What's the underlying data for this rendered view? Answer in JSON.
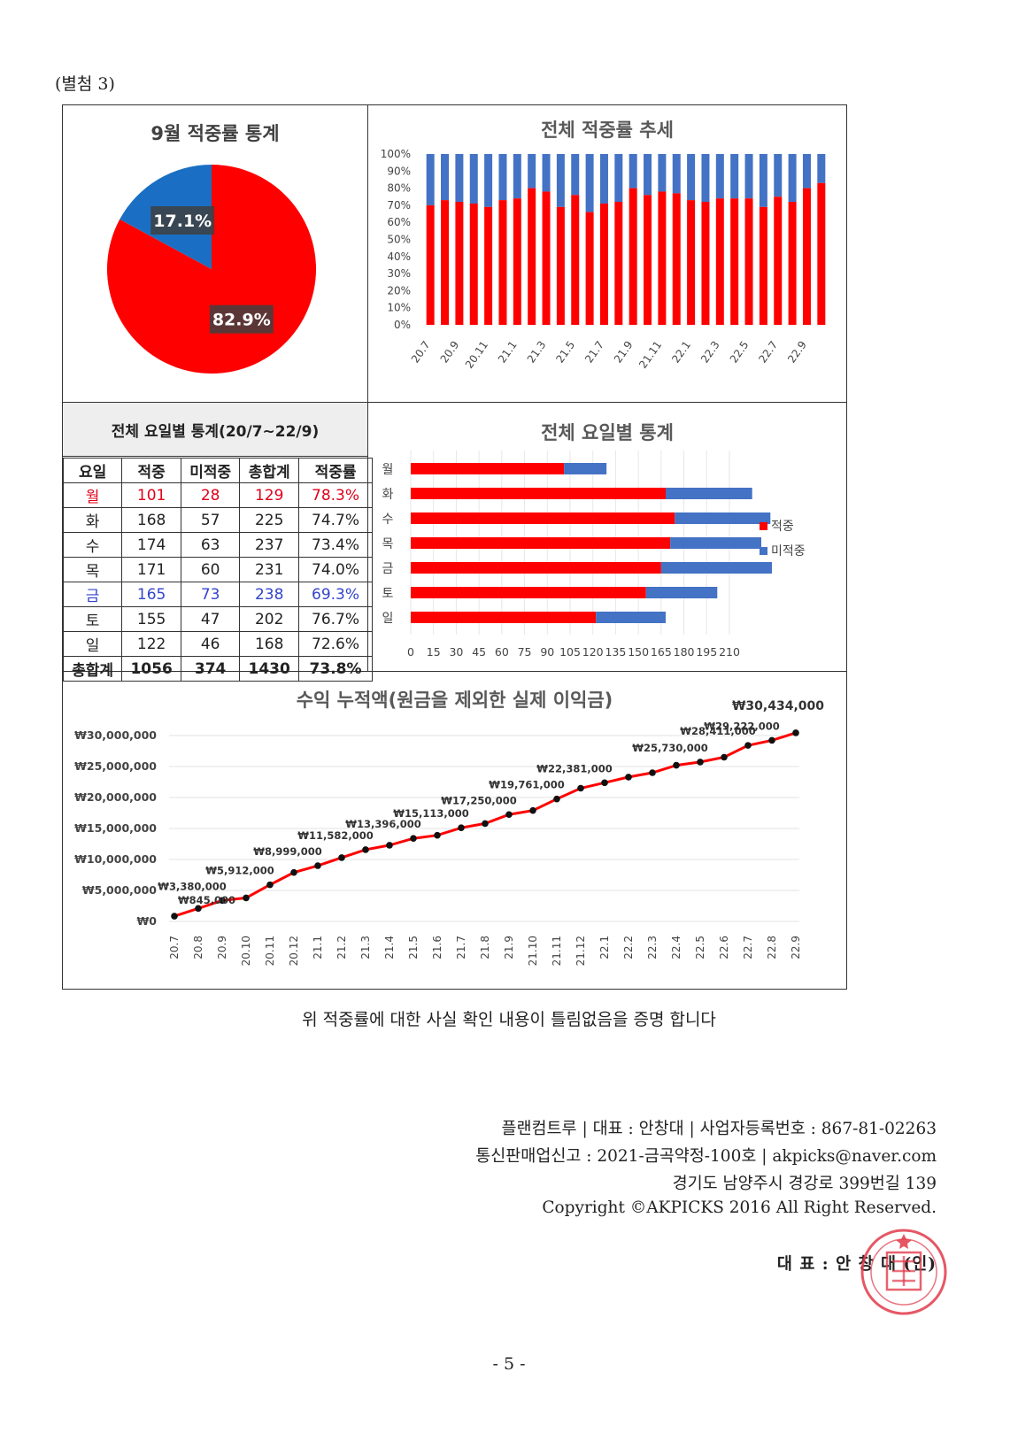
{
  "attachment_label": "(별첨 3)",
  "pie": {
    "title": "9월 적중률 통계",
    "slices": [
      {
        "label": "82.9%",
        "value": 82.9,
        "color": "#ff0000"
      },
      {
        "label": "17.1%",
        "value": 17.1,
        "color": "#1a6fc4"
      }
    ]
  },
  "trend": {
    "title": "전체 적중률 추세",
    "y_ticks": [
      "100%",
      "90%",
      "80%",
      "70%",
      "60%",
      "50%",
      "40%",
      "30%",
      "20%",
      "10%",
      "0%"
    ],
    "x_labels": [
      "20.7",
      "20.9",
      "20.11",
      "21.1",
      "21.3",
      "21.5",
      "21.7",
      "21.9",
      "21.11",
      "22.1",
      "22.3",
      "22.5",
      "22.7",
      "22.9"
    ],
    "values": [
      70,
      73,
      72,
      71,
      69,
      73,
      74,
      80,
      78,
      69,
      76,
      66,
      71,
      72,
      80,
      76,
      78,
      77,
      73,
      72,
      74,
      74,
      74,
      69,
      75,
      72,
      80,
      83
    ],
    "colors": {
      "hit": "#ff0000",
      "miss": "#4472c4"
    }
  },
  "weekday_table": {
    "title": "전체 요일별 통계(20/7~22/9)",
    "headers": [
      "요일",
      "적중",
      "미적중",
      "총합계",
      "적중률"
    ],
    "rows": [
      {
        "cells": [
          "월",
          "101",
          "28",
          "129",
          "78.3%"
        ],
        "style": "red"
      },
      {
        "cells": [
          "화",
          "168",
          "57",
          "225",
          "74.7%"
        ],
        "style": ""
      },
      {
        "cells": [
          "수",
          "174",
          "63",
          "237",
          "73.4%"
        ],
        "style": ""
      },
      {
        "cells": [
          "목",
          "171",
          "60",
          "231",
          "74.0%"
        ],
        "style": ""
      },
      {
        "cells": [
          "금",
          "165",
          "73",
          "238",
          "69.3%"
        ],
        "style": "blue"
      },
      {
        "cells": [
          "토",
          "155",
          "47",
          "202",
          "76.7%"
        ],
        "style": ""
      },
      {
        "cells": [
          "일",
          "122",
          "46",
          "168",
          "72.6%"
        ],
        "style": ""
      },
      {
        "cells": [
          "총합계",
          "1056",
          "374",
          "1430",
          "73.8%"
        ],
        "style": "bold"
      }
    ]
  },
  "weekday_chart": {
    "title": "전체 요일별 통계",
    "categories": [
      "월",
      "화",
      "수",
      "목",
      "금",
      "토",
      "일"
    ],
    "hit": [
      101,
      168,
      174,
      171,
      165,
      155,
      122
    ],
    "miss": [
      28,
      57,
      63,
      60,
      73,
      47,
      46
    ],
    "x_ticks": [
      0,
      15,
      30,
      45,
      60,
      75,
      90,
      105,
      120,
      135,
      150,
      165,
      180,
      195,
      210
    ],
    "legend": [
      {
        "label": "적중",
        "color": "#ff0000"
      },
      {
        "label": "미적중",
        "color": "#4472c4"
      }
    ]
  },
  "profit": {
    "title": "수익 누적액(원금을 제외한 실제 이익금)",
    "y_ticks": [
      "₩30,000,000",
      "₩25,000,000",
      "₩20,000,000",
      "₩15,000,000",
      "₩10,000,000",
      "₩5,000,000",
      "₩0"
    ],
    "x_labels": [
      "20.7",
      "20.8",
      "20.9",
      "20.10",
      "20.11",
      "20.12",
      "21.1",
      "21.2",
      "21.3",
      "21.4",
      "21.5",
      "21.6",
      "21.7",
      "21.8",
      "21.9",
      "21.10",
      "21.11",
      "21.12",
      "22.1",
      "22.2",
      "22.3",
      "22.4",
      "22.5",
      "22.6",
      "22.7",
      "22.8",
      "22.9"
    ],
    "values": [
      845000,
      2100000,
      3380000,
      3800000,
      5912000,
      7900000,
      8999000,
      10300000,
      11582000,
      12300000,
      13396000,
      13900000,
      15113000,
      15800000,
      17250000,
      17900000,
      19761000,
      21500000,
      22381000,
      23300000,
      24000000,
      25200000,
      25730000,
      26500000,
      28411000,
      29222000,
      30434000
    ],
    "data_labels": [
      {
        "i": 0,
        "text": "₩845,000"
      },
      {
        "i": 2,
        "text": "₩3,380,000"
      },
      {
        "i": 4,
        "text": "₩5,912,000"
      },
      {
        "i": 6,
        "text": "₩8,999,000"
      },
      {
        "i": 8,
        "text": "₩11,582,000"
      },
      {
        "i": 10,
        "text": "₩13,396,000"
      },
      {
        "i": 12,
        "text": "₩15,113,000"
      },
      {
        "i": 14,
        "text": "₩17,250,000"
      },
      {
        "i": 16,
        "text": "₩19,761,000"
      },
      {
        "i": 18,
        "text": "₩22,381,000"
      },
      {
        "i": 22,
        "text": "₩25,730,000"
      },
      {
        "i": 24,
        "text": "₩28,411,000"
      },
      {
        "i": 25,
        "text": "₩29,222,000"
      },
      {
        "i": 26,
        "text": "₩30,434,000"
      }
    ]
  },
  "certification": "위 적중률에 대한 사실 확인 내용이 틀림없음을 증명 합니다",
  "footer": {
    "line1": "플랜컴트루 | 대표 : 안창대 | 사업자등록번호 : 867-81-02263",
    "line2": "통신판매업신고 : 2021-금곡약정-100호 | akpicks@naver.com",
    "line3": "경기도 남양주시 경강로 399번길 139",
    "line4": "Copyright ©AKPICKS 2016 All Right Reserved.",
    "representative": "대 표 : 안 창 대 (인)"
  },
  "page_number": "- 5 -"
}
